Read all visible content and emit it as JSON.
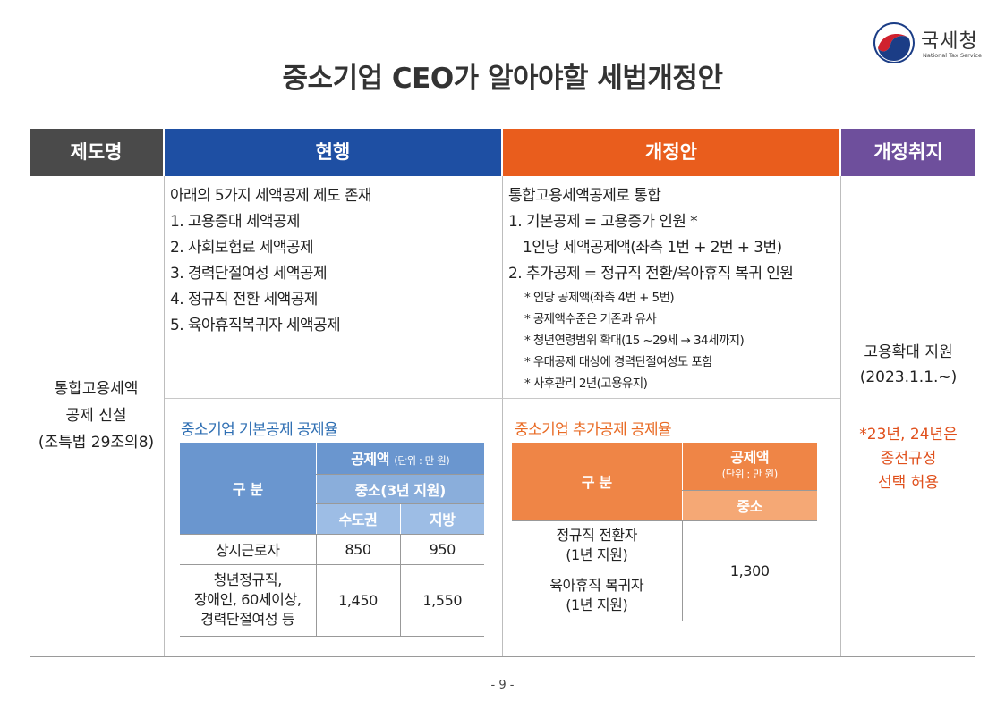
{
  "logo": {
    "name": "국세청",
    "english": "National Tax Service"
  },
  "title": "중소기업 CEO가 알아야할 세법개정안",
  "headers": {
    "name": "제도명",
    "current": "현행",
    "proposed": "개정안",
    "purpose": "개정취지"
  },
  "row": {
    "name_lines": [
      "통합고용세액",
      "공제 신설",
      "(조특법 29조의8)"
    ],
    "current": {
      "items": [
        "아래의 5가지 세액공제 제도 존재",
        "1. 고용증대 세액공제",
        "2. 사회보험료 세액공제",
        "3. 경력단절여성 세액공제",
        "4. 정규직 전환 세액공제",
        "5. 육아휴직복귀자 세액공제"
      ],
      "table_title": "중소기업 기본공제 공제율",
      "table": {
        "col_group": "구 분",
        "amount": "공제액",
        "unit": "(단위 : 만 원)",
        "sub": "중소(3년 지원)",
        "region_a": "수도권",
        "region_b": "지방",
        "rows": [
          {
            "label_lines": [
              "상시근로자"
            ],
            "a": "850",
            "b": "950"
          },
          {
            "label_lines": [
              "청년정규직,",
              "장애인, 60세이상,",
              "경력단절여성 등"
            ],
            "a": "1,450",
            "b": "1,550"
          }
        ]
      }
    },
    "proposed": {
      "lines": [
        "통합고용세액공제로 통합",
        "1. 기본공제 = 고용증가 인원 *",
        "1인당 세액공제액(좌측 1번 + 2번 + 3번)",
        "2. 추가공제 = 정규직 전환/육아휴직 복귀 인원"
      ],
      "notes": [
        "* 인당 공제액(좌측 4번 + 5번)",
        "* 공제액수준은 기존과 유사",
        "* 청년연령범위 확대(15 ~29세 → 34세까지)",
        "* 우대공제 대상에 경력단절여성도 포함",
        "* 사후관리 2년(고용유지)"
      ],
      "table_title": "중소기업 추가공제 공제율",
      "table": {
        "col_group": "구 분",
        "amount": "공제액",
        "unit": "(단위 : 만 원)",
        "sub": "중소",
        "rows": [
          {
            "label_lines": [
              "정규직 전환자",
              "(1년 지원)"
            ]
          },
          {
            "label_lines": [
              "육아휴직 복귀자",
              "(1년 지원)"
            ]
          }
        ],
        "merged_value": "1,300"
      }
    },
    "purpose": {
      "lines": [
        "고용확대 지원",
        "(2023.1.1.~)"
      ],
      "note_lines": [
        "*23년, 24년은",
        "종전규정",
        "선택 허용"
      ]
    }
  },
  "page_number": "- 9 -",
  "colors": {
    "header_name": "#4a4a4a",
    "header_current": "#1e4fa3",
    "header_proposed": "#e95d1d",
    "header_purpose": "#6e4f9c",
    "accent_blue": "#2f6fb3",
    "accent_orange": "#e96b25"
  }
}
